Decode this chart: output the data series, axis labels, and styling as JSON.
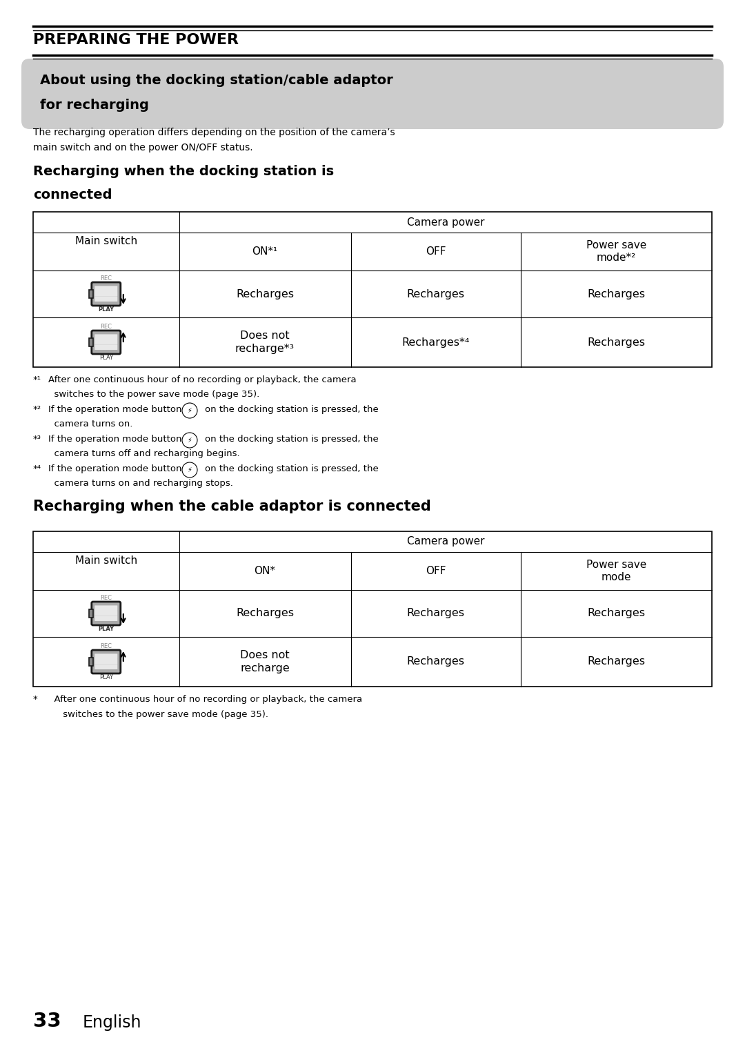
{
  "bg_color": "#ffffff",
  "page_width": 10.8,
  "page_height": 15.26,
  "section_title": "PREPARING THE POWER",
  "gray_box_text_line1": "About using the docking station/cable adaptor",
  "gray_box_text_line2": "for recharging",
  "gray_box_color": "#cccccc",
  "intro_text_line1": "The recharging operation differs depending on the position of the camera’s",
  "intro_text_line2": "main switch and on the power ON/OFF status.",
  "section1_title_line1": "Recharging when the docking station is",
  "section1_title_line2": "connected",
  "table1_subheaders": [
    "ON*¹",
    "OFF",
    "Power save\nmode*²"
  ],
  "table1_row1_data": [
    "Recharges",
    "Recharges",
    "Recharges"
  ],
  "table1_row2_col1": "Does not\nrecharge*³",
  "table1_row2_col2": "Recharges*⁴",
  "table1_row2_col3": "Recharges",
  "fn1_texts": [
    [
      "*¹",
      " After one continuous hour of no recording or playback, the camera"
    ],
    [
      "",
      "  switches to the power save mode (page 35)."
    ],
    [
      "*²",
      " If the operation mode button ⒧ on the docking station is pressed, the"
    ],
    [
      "",
      "  camera turns on."
    ],
    [
      "*³",
      " If the operation mode button ⒧ on the docking station is pressed, the"
    ],
    [
      "",
      "  camera turns off and recharging begins."
    ],
    [
      "*⁴",
      " If the operation mode button ⒧ on the docking station is pressed, the"
    ],
    [
      "",
      "  camera turns on and recharging stops."
    ]
  ],
  "section2_title": "Recharging when the cable adaptor is connected",
  "table2_subheaders": [
    "ON*",
    "OFF",
    "Power save\nmode"
  ],
  "table2_row1_data": [
    "Recharges",
    "Recharges",
    "Recharges"
  ],
  "table2_row2_col1": "Does not\nrecharge",
  "table2_row2_col2": "Recharges",
  "table2_row2_col3": "Recharges",
  "fn2_texts": [
    [
      "*",
      "  After one continuous hour of no recording or playback, the camera"
    ],
    [
      "",
      "   switches to the power save mode (page 35)."
    ]
  ],
  "page_number": "33",
  "page_label": "English"
}
